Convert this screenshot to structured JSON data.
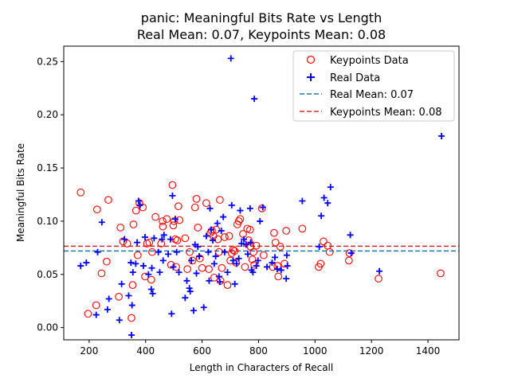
{
  "chart_data": {
    "type": "scatter",
    "title_line1": "panic: Meaningful Bits Rate vs Length",
    "title_line2": "Real Mean: 0.07, Keypoints Mean: 0.08",
    "xlabel": "Length in Characters of Recall",
    "ylabel": "Meaningful Bits Rate",
    "xlim": [
      110,
      1510
    ],
    "ylim": [
      -0.0115,
      0.2645
    ],
    "xticks": [
      200,
      400,
      600,
      800,
      1000,
      1200,
      1400
    ],
    "yticks": [
      0.0,
      0.05,
      0.1,
      0.15,
      0.2,
      0.25
    ],
    "legend_position": "top-right",
    "legend": [
      {
        "label": "Keypoints Data",
        "marker": "circle",
        "color": "#ff0000"
      },
      {
        "label": "Real Data",
        "marker": "plus",
        "color": "#0000ff"
      },
      {
        "label": "Real Mean: 0.07",
        "marker": "dashed-line",
        "color": "#1f77b4"
      },
      {
        "label": "Keypoints Mean: 0.08",
        "marker": "dashed-line",
        "color": "#d62728"
      }
    ],
    "real_mean": 0.072,
    "keypoints_mean": 0.0765,
    "series": [
      {
        "name": "Keypoints Data",
        "marker": "circle",
        "color": "#ff0000",
        "points": [
          [
            170,
            0.127
          ],
          [
            196,
            0.013
          ],
          [
            225,
            0.021
          ],
          [
            228,
            0.111
          ],
          [
            244,
            0.051
          ],
          [
            262,
            0.062
          ],
          [
            268,
            0.12
          ],
          [
            305,
            0.029
          ],
          [
            311,
            0.094
          ],
          [
            320,
            0.081
          ],
          [
            335,
            0.079
          ],
          [
            350,
            0.009
          ],
          [
            354,
            0.04
          ],
          [
            357,
            0.097
          ],
          [
            366,
            0.11
          ],
          [
            372,
            0.068
          ],
          [
            378,
            0.117
          ],
          [
            390,
            0.113
          ],
          [
            398,
            0.048
          ],
          [
            405,
            0.079
          ],
          [
            413,
            0.08
          ],
          [
            420,
            0.045
          ],
          [
            423,
            0.071
          ],
          [
            435,
            0.104
          ],
          [
            455,
            0.079
          ],
          [
            460,
            0.1
          ],
          [
            461,
            0.095
          ],
          [
            475,
            0.102
          ],
          [
            490,
            0.059
          ],
          [
            495,
            0.134
          ],
          [
            498,
            0.096
          ],
          [
            501,
            0.1
          ],
          [
            505,
            0.083
          ],
          [
            508,
            0.057
          ],
          [
            512,
            0.082
          ],
          [
            516,
            0.114
          ],
          [
            520,
            0.101
          ],
          [
            540,
            0.084
          ],
          [
            548,
            0.055
          ],
          [
            556,
            0.071
          ],
          [
            566,
            0.063
          ],
          [
            575,
            0.113
          ],
          [
            580,
            0.121
          ],
          [
            585,
            0.094
          ],
          [
            592,
            0.065
          ],
          [
            600,
            0.056
          ],
          [
            615,
            0.117
          ],
          [
            624,
            0.055
          ],
          [
            630,
            0.089
          ],
          [
            635,
            0.091
          ],
          [
            640,
            0.086
          ],
          [
            643,
            0.047
          ],
          [
            650,
            0.092
          ],
          [
            656,
            0.083
          ],
          [
            660,
            0.071
          ],
          [
            663,
            0.12
          ],
          [
            665,
            0.044
          ],
          [
            670,
            0.056
          ],
          [
            680,
            0.085
          ],
          [
            690,
            0.04
          ],
          [
            696,
            0.086
          ],
          [
            700,
            0.063
          ],
          [
            705,
            0.07
          ],
          [
            710,
            0.073
          ],
          [
            715,
            0.072
          ],
          [
            720,
            0.061
          ],
          [
            725,
            0.097
          ],
          [
            730,
            0.1
          ],
          [
            735,
            0.102
          ],
          [
            745,
            0.088
          ],
          [
            752,
            0.057
          ],
          [
            760,
            0.093
          ],
          [
            765,
            0.082
          ],
          [
            770,
            0.092
          ],
          [
            772,
            0.076
          ],
          [
            778,
            0.064
          ],
          [
            782,
            0.071
          ],
          [
            785,
            0.059
          ],
          [
            792,
            0.077
          ],
          [
            812,
            0.112
          ],
          [
            818,
            0.068
          ],
          [
            850,
            0.057
          ],
          [
            855,
            0.089
          ],
          [
            860,
            0.08
          ],
          [
            867,
            0.058
          ],
          [
            870,
            0.048
          ],
          [
            877,
            0.076
          ],
          [
            892,
            0.06
          ],
          [
            898,
            0.091
          ],
          [
            955,
            0.093
          ],
          [
            1013,
            0.057
          ],
          [
            1020,
            0.06
          ],
          [
            1030,
            0.081
          ],
          [
            1045,
            0.077
          ],
          [
            1052,
            0.071
          ],
          [
            1120,
            0.063
          ],
          [
            1122,
            0.07
          ],
          [
            1225,
            0.046
          ],
          [
            1445,
            0.051
          ]
        ]
      },
      {
        "name": "Real Data",
        "marker": "plus",
        "color": "#0000ff",
        "points": [
          [
            170,
            0.058
          ],
          [
            190,
            0.061
          ],
          [
            225,
            0.012
          ],
          [
            230,
            0.071
          ],
          [
            245,
            0.099
          ],
          [
            265,
            0.017
          ],
          [
            270,
            0.027
          ],
          [
            307,
            0.007
          ],
          [
            315,
            0.041
          ],
          [
            325,
            0.083
          ],
          [
            340,
            0.03
          ],
          [
            348,
            0.061
          ],
          [
            350,
            -0.007
          ],
          [
            352,
            0.021
          ],
          [
            355,
            0.052
          ],
          [
            365,
            0.06
          ],
          [
            370,
            0.08
          ],
          [
            375,
            0.119
          ],
          [
            380,
            0.115
          ],
          [
            392,
            0.058
          ],
          [
            398,
            0.085
          ],
          [
            410,
            0.05
          ],
          [
            420,
            0.036
          ],
          [
            422,
            0.056
          ],
          [
            425,
            0.032
          ],
          [
            430,
            0.084
          ],
          [
            445,
            0.071
          ],
          [
            450,
            0.052
          ],
          [
            458,
            0.083
          ],
          [
            462,
            0.063
          ],
          [
            465,
            0.087
          ],
          [
            480,
            0.069
          ],
          [
            488,
            0.083
          ],
          [
            492,
            0.013
          ],
          [
            495,
            0.124
          ],
          [
            498,
            0.057
          ],
          [
            505,
            0.102
          ],
          [
            510,
            0.071
          ],
          [
            518,
            0.052
          ],
          [
            540,
            0.028
          ],
          [
            546,
            0.044
          ],
          [
            555,
            0.037
          ],
          [
            558,
            0.034
          ],
          [
            562,
            0.063
          ],
          [
            570,
            0.016
          ],
          [
            575,
            0.078
          ],
          [
            580,
            0.051
          ],
          [
            585,
            0.076
          ],
          [
            590,
            0.067
          ],
          [
            606,
            0.019
          ],
          [
            615,
            0.086
          ],
          [
            622,
            0.071
          ],
          [
            625,
            0.044
          ],
          [
            628,
            0.112
          ],
          [
            632,
            0.092
          ],
          [
            638,
            0.082
          ],
          [
            643,
            0.06
          ],
          [
            648,
            0.067
          ],
          [
            654,
            0.098
          ],
          [
            660,
            0.048
          ],
          [
            663,
            0.043
          ],
          [
            668,
            0.091
          ],
          [
            675,
            0.104
          ],
          [
            680,
            0.071
          ],
          [
            690,
            0.052
          ],
          [
            702,
            0.253
          ],
          [
            705,
            0.115
          ],
          [
            710,
            0.063
          ],
          [
            716,
            0.041
          ],
          [
            722,
            0.06
          ],
          [
            730,
            0.065
          ],
          [
            735,
            0.11
          ],
          [
            740,
            0.079
          ],
          [
            748,
            0.083
          ],
          [
            756,
            0.078
          ],
          [
            762,
            0.069
          ],
          [
            770,
            0.112
          ],
          [
            772,
            0.08
          ],
          [
            775,
            0.054
          ],
          [
            780,
            0.052
          ],
          [
            785,
            0.215
          ],
          [
            792,
            0.058
          ],
          [
            798,
            0.063
          ],
          [
            805,
            0.1
          ],
          [
            815,
            0.113
          ],
          [
            830,
            0.057
          ],
          [
            848,
            0.061
          ],
          [
            858,
            0.066
          ],
          [
            866,
            0.055
          ],
          [
            880,
            0.054
          ],
          [
            898,
            0.046
          ],
          [
            900,
            0.068
          ],
          [
            902,
            0.058
          ],
          [
            955,
            0.119
          ],
          [
            1015,
            0.076
          ],
          [
            1022,
            0.105
          ],
          [
            1032,
            0.122
          ],
          [
            1045,
            0.117
          ],
          [
            1055,
            0.132
          ],
          [
            1125,
            0.087
          ],
          [
            1128,
            0.07
          ],
          [
            1228,
            0.053
          ],
          [
            1448,
            0.18
          ]
        ]
      }
    ]
  }
}
